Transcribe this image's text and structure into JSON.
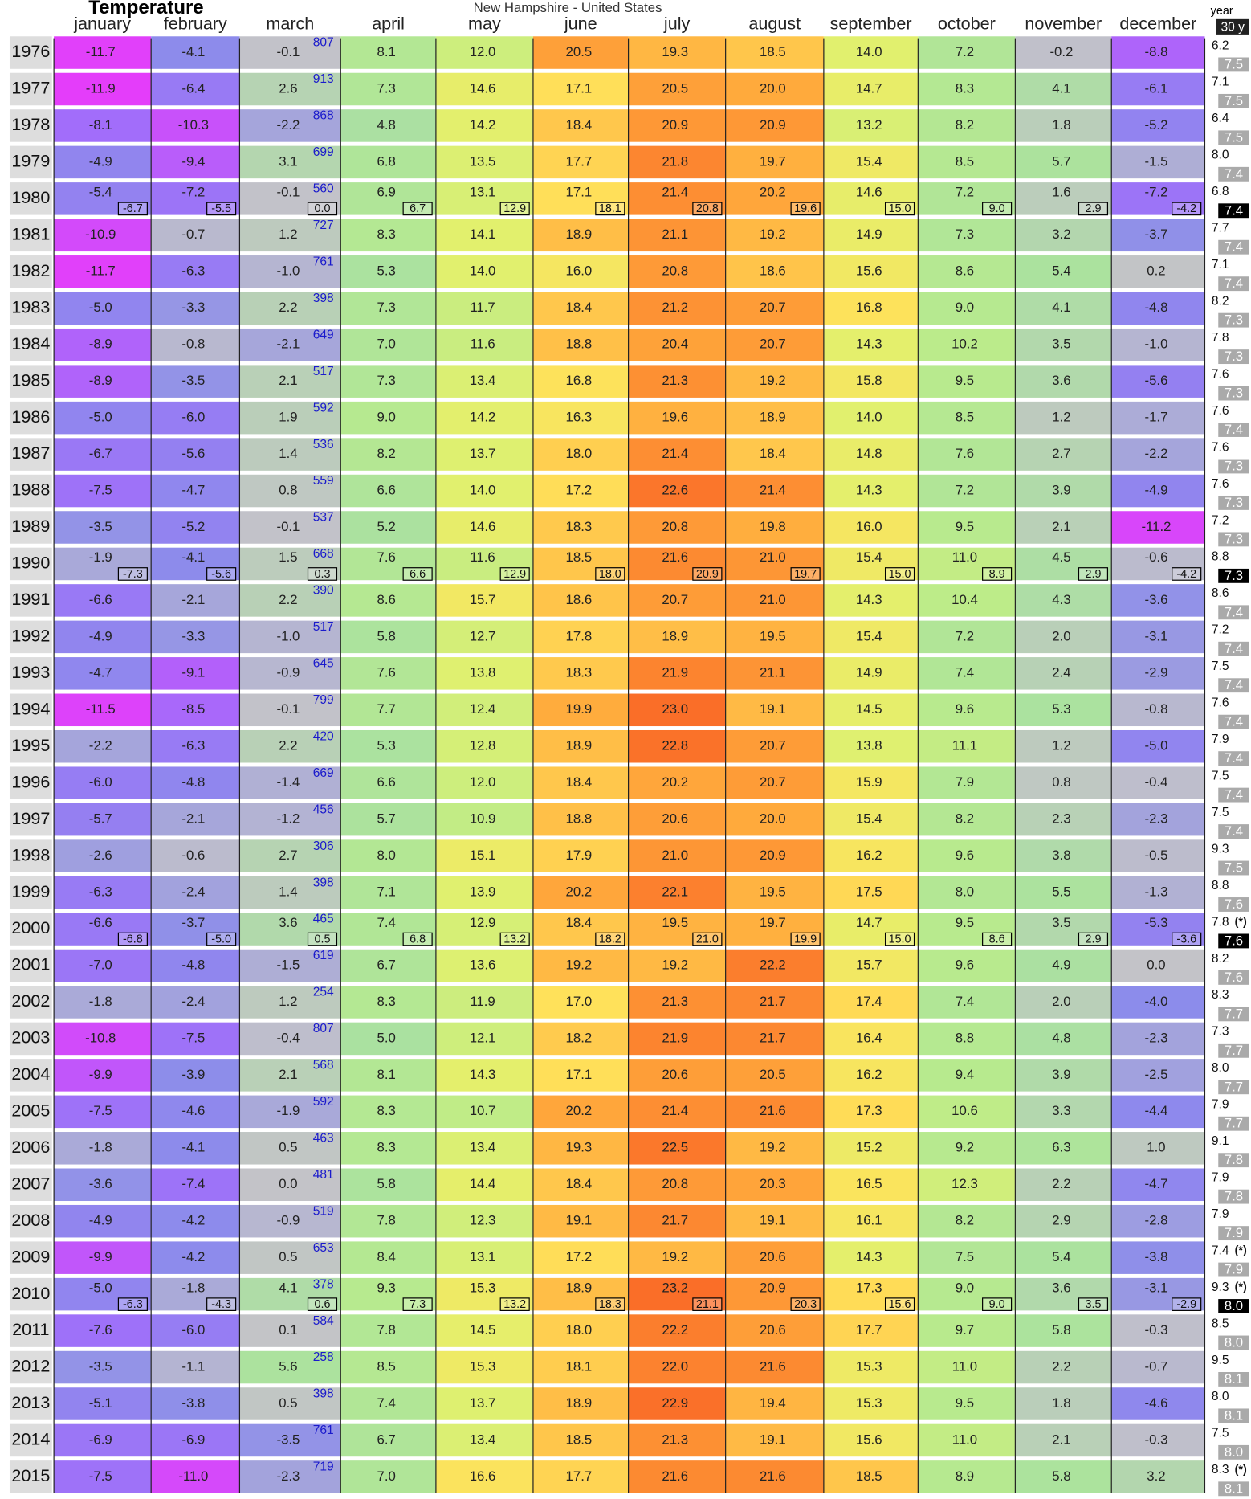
{
  "chart_data": {
    "type": "heatmap",
    "title": "Temperature",
    "subtitle": "New Hampshire - United States",
    "categories": [
      "january",
      "february",
      "march",
      "april",
      "may",
      "june",
      "july",
      "august",
      "september",
      "october",
      "november",
      "december"
    ],
    "year_header": "year",
    "avg_header": "30 y",
    "rows": [
      {
        "year": "1976",
        "values": [
          -11.7,
          -4.1,
          -0.1,
          8.1,
          12.0,
          20.5,
          19.3,
          18.5,
          14.0,
          7.2,
          -0.2,
          -8.8
        ],
        "snow": 807,
        "annual": 6.2,
        "avg30": 7.5
      },
      {
        "year": "1977",
        "values": [
          -11.9,
          -6.4,
          2.6,
          7.3,
          14.6,
          17.1,
          20.5,
          20.0,
          14.7,
          8.3,
          4.1,
          -6.1
        ],
        "snow": 913,
        "annual": 7.1,
        "avg30": 7.5
      },
      {
        "year": "1978",
        "values": [
          -8.1,
          -10.3,
          -2.2,
          4.8,
          14.2,
          18.4,
          20.9,
          20.9,
          13.2,
          8.2,
          1.8,
          -5.2
        ],
        "snow": 868,
        "annual": 6.4,
        "avg30": 7.5
      },
      {
        "year": "1979",
        "values": [
          -4.9,
          -9.4,
          3.1,
          6.8,
          13.5,
          17.7,
          21.8,
          19.7,
          15.4,
          8.5,
          5.7,
          -1.5
        ],
        "snow": 699,
        "annual": 8.0,
        "avg30": 7.4
      },
      {
        "year": "1980",
        "values": [
          -5.4,
          -7.2,
          -0.1,
          6.9,
          13.1,
          17.1,
          21.4,
          20.2,
          14.6,
          7.2,
          1.6,
          -7.2
        ],
        "snow": 560,
        "annual": 6.8,
        "avg30": 7.4,
        "normals": [
          -6.7,
          -5.5,
          0.0,
          6.7,
          12.9,
          18.1,
          20.8,
          19.6,
          15.0,
          9.0,
          2.9,
          -4.2
        ]
      },
      {
        "year": "1981",
        "values": [
          -10.9,
          -0.7,
          1.2,
          8.3,
          14.1,
          18.9,
          21.1,
          19.2,
          14.9,
          7.3,
          3.2,
          -3.7
        ],
        "snow": 727,
        "annual": 7.7,
        "avg30": 7.4
      },
      {
        "year": "1982",
        "values": [
          -11.7,
          -6.3,
          -1.0,
          5.3,
          14.0,
          16.0,
          20.8,
          18.6,
          15.6,
          8.6,
          5.4,
          0.2
        ],
        "snow": 761,
        "annual": 7.1,
        "avg30": 7.4
      },
      {
        "year": "1983",
        "values": [
          -5.0,
          -3.3,
          2.2,
          7.3,
          11.7,
          18.4,
          21.2,
          20.7,
          16.8,
          9.0,
          4.1,
          -4.8
        ],
        "snow": 398,
        "annual": 8.2,
        "avg30": 7.3
      },
      {
        "year": "1984",
        "values": [
          -8.9,
          -0.8,
          -2.1,
          7.0,
          11.6,
          18.8,
          20.4,
          20.7,
          14.3,
          10.2,
          3.5,
          -1.0
        ],
        "snow": 649,
        "annual": 7.8,
        "avg30": 7.3
      },
      {
        "year": "1985",
        "values": [
          -8.9,
          -3.5,
          2.1,
          7.3,
          13.4,
          16.8,
          21.3,
          19.2,
          15.8,
          9.5,
          3.6,
          -5.6
        ],
        "snow": 517,
        "annual": 7.6,
        "avg30": 7.3
      },
      {
        "year": "1986",
        "values": [
          -5.0,
          -6.0,
          1.9,
          9.0,
          14.2,
          16.3,
          19.6,
          18.9,
          14.0,
          8.5,
          1.2,
          -1.7
        ],
        "snow": 592,
        "annual": 7.6,
        "avg30": 7.4
      },
      {
        "year": "1987",
        "values": [
          -6.7,
          -5.6,
          1.4,
          8.2,
          13.7,
          18.0,
          21.4,
          18.4,
          14.8,
          7.6,
          2.7,
          -2.2
        ],
        "snow": 536,
        "annual": 7.6,
        "avg30": 7.3
      },
      {
        "year": "1988",
        "values": [
          -7.5,
          -4.7,
          0.8,
          6.6,
          14.0,
          17.2,
          22.6,
          21.4,
          14.3,
          7.2,
          3.9,
          -4.9
        ],
        "snow": 559,
        "annual": 7.6,
        "avg30": 7.3
      },
      {
        "year": "1989",
        "values": [
          -3.5,
          -5.2,
          -0.1,
          5.2,
          14.6,
          18.3,
          20.8,
          19.8,
          16.0,
          9.5,
          2.1,
          -11.2
        ],
        "snow": 537,
        "annual": 7.2,
        "avg30": 7.3
      },
      {
        "year": "1990",
        "values": [
          -1.9,
          -4.1,
          1.5,
          7.6,
          11.6,
          18.5,
          21.6,
          21.0,
          15.4,
          11.0,
          4.5,
          -0.6
        ],
        "snow": 668,
        "annual": 8.8,
        "avg30": 7.3,
        "normals": [
          -7.3,
          -5.6,
          0.3,
          6.6,
          12.9,
          18.0,
          20.9,
          19.7,
          15.0,
          8.9,
          2.9,
          -4.2
        ]
      },
      {
        "year": "1991",
        "values": [
          -6.6,
          -2.1,
          2.2,
          8.6,
          15.7,
          18.6,
          20.7,
          21.0,
          14.3,
          10.4,
          4.3,
          -3.6
        ],
        "snow": 390,
        "annual": 8.6,
        "avg30": 7.4
      },
      {
        "year": "1992",
        "values": [
          -4.9,
          -3.3,
          -1.0,
          5.8,
          12.7,
          17.8,
          18.9,
          19.5,
          15.4,
          7.2,
          2.0,
          -3.1
        ],
        "snow": 517,
        "annual": 7.2,
        "avg30": 7.4
      },
      {
        "year": "1993",
        "values": [
          -4.7,
          -9.1,
          -0.9,
          7.6,
          13.8,
          18.3,
          21.9,
          21.1,
          14.9,
          7.4,
          2.4,
          -2.9
        ],
        "snow": 645,
        "annual": 7.5,
        "avg30": 7.4
      },
      {
        "year": "1994",
        "values": [
          -11.5,
          -8.5,
          -0.1,
          7.7,
          12.4,
          19.9,
          23.0,
          19.1,
          14.5,
          9.6,
          5.3,
          -0.8
        ],
        "snow": 799,
        "annual": 7.6,
        "avg30": 7.4
      },
      {
        "year": "1995",
        "values": [
          -2.2,
          -6.3,
          2.2,
          5.3,
          12.8,
          18.9,
          22.8,
          20.7,
          13.8,
          11.1,
          1.2,
          -5.0
        ],
        "snow": 420,
        "annual": 7.9,
        "avg30": 7.4
      },
      {
        "year": "1996",
        "values": [
          -6.0,
          -4.8,
          -1.4,
          6.6,
          12.0,
          18.4,
          20.2,
          20.7,
          15.9,
          7.9,
          0.8,
          -0.4
        ],
        "snow": 669,
        "annual": 7.5,
        "avg30": 7.4
      },
      {
        "year": "1997",
        "values": [
          -5.7,
          -2.1,
          -1.2,
          5.7,
          10.9,
          18.8,
          20.6,
          20.0,
          15.4,
          8.2,
          2.3,
          -2.3
        ],
        "snow": 456,
        "annual": 7.5,
        "avg30": 7.4
      },
      {
        "year": "1998",
        "values": [
          -2.6,
          -0.6,
          2.7,
          8.0,
          15.1,
          17.9,
          21.0,
          20.9,
          16.2,
          9.6,
          3.8,
          -0.5
        ],
        "snow": 306,
        "annual": 9.3,
        "avg30": 7.5
      },
      {
        "year": "1999",
        "values": [
          -6.3,
          -2.4,
          1.4,
          7.1,
          13.9,
          20.2,
          22.1,
          19.5,
          17.5,
          8.0,
          5.5,
          -1.3
        ],
        "snow": 398,
        "annual": 8.8,
        "avg30": 7.6
      },
      {
        "year": "2000",
        "values": [
          -6.6,
          -3.7,
          3.6,
          7.4,
          12.9,
          18.4,
          19.5,
          19.7,
          14.7,
          9.5,
          3.5,
          -5.3
        ],
        "snow": 465,
        "annual": 7.8,
        "note": "(*)",
        "avg30": 7.6,
        "normals": [
          -6.8,
          -5.0,
          0.5,
          6.8,
          13.2,
          18.2,
          21.0,
          19.9,
          15.0,
          8.6,
          2.9,
          -3.6
        ]
      },
      {
        "year": "2001",
        "values": [
          -7.0,
          -4.8,
          -1.5,
          6.7,
          13.6,
          19.2,
          19.2,
          22.2,
          15.7,
          9.6,
          4.9,
          0.0
        ],
        "snow": 619,
        "annual": 8.2,
        "avg30": 7.6
      },
      {
        "year": "2002",
        "values": [
          -1.8,
          -2.4,
          1.2,
          8.3,
          11.9,
          17.0,
          21.3,
          21.7,
          17.4,
          7.4,
          2.0,
          -4.0
        ],
        "snow": 254,
        "annual": 8.3,
        "avg30": 7.7
      },
      {
        "year": "2003",
        "values": [
          -10.8,
          -7.5,
          -0.4,
          5.0,
          12.1,
          18.2,
          21.9,
          21.7,
          16.4,
          8.8,
          4.8,
          -2.3
        ],
        "snow": 807,
        "annual": 7.3,
        "avg30": 7.7
      },
      {
        "year": "2004",
        "values": [
          -9.9,
          -3.9,
          2.1,
          8.1,
          14.3,
          17.1,
          20.6,
          20.5,
          16.2,
          9.4,
          3.9,
          -2.5
        ],
        "snow": 568,
        "annual": 8.0,
        "avg30": 7.7
      },
      {
        "year": "2005",
        "values": [
          -7.5,
          -4.6,
          -1.9,
          8.3,
          10.7,
          20.2,
          21.4,
          21.6,
          17.3,
          10.6,
          3.3,
          -4.4
        ],
        "snow": 592,
        "annual": 7.9,
        "avg30": 7.7
      },
      {
        "year": "2006",
        "values": [
          -1.8,
          -4.1,
          0.5,
          8.3,
          13.4,
          19.3,
          22.5,
          19.2,
          15.2,
          9.2,
          6.3,
          1.0
        ],
        "snow": 463,
        "annual": 9.1,
        "avg30": 7.8
      },
      {
        "year": "2007",
        "values": [
          -3.6,
          -7.4,
          0.0,
          5.8,
          14.4,
          18.4,
          20.8,
          20.3,
          16.5,
          12.3,
          2.2,
          -4.7
        ],
        "snow": 481,
        "annual": 7.9,
        "avg30": 7.8
      },
      {
        "year": "2008",
        "values": [
          -4.9,
          -4.2,
          -0.9,
          7.8,
          12.3,
          19.1,
          21.7,
          19.1,
          16.1,
          8.2,
          2.9,
          -2.8
        ],
        "snow": 519,
        "annual": 7.9,
        "avg30": 7.9
      },
      {
        "year": "2009",
        "values": [
          -9.9,
          -4.2,
          0.5,
          8.4,
          13.1,
          17.2,
          19.2,
          20.6,
          14.3,
          7.5,
          5.4,
          -3.8
        ],
        "snow": 653,
        "annual": 7.4,
        "note": "(*)",
        "avg30": 7.9
      },
      {
        "year": "2010",
        "values": [
          -5.0,
          -1.8,
          4.1,
          9.3,
          15.3,
          18.9,
          23.2,
          20.9,
          17.3,
          9.0,
          3.6,
          -3.1
        ],
        "snow": 378,
        "annual": 9.3,
        "note": "(*)",
        "avg30": 8.0,
        "normals": [
          -6.3,
          -4.3,
          0.6,
          7.3,
          13.2,
          18.3,
          21.1,
          20.3,
          15.6,
          9.0,
          3.5,
          -2.9
        ]
      },
      {
        "year": "2011",
        "values": [
          -7.6,
          -6.0,
          0.1,
          7.8,
          14.5,
          18.0,
          22.2,
          20.6,
          17.7,
          9.7,
          5.8,
          -0.3
        ],
        "snow": 584,
        "annual": 8.5,
        "avg30": 8.0
      },
      {
        "year": "2012",
        "values": [
          -3.5,
          -1.1,
          5.6,
          8.5,
          15.3,
          18.1,
          22.0,
          21.6,
          15.3,
          11.0,
          2.2,
          -0.7
        ],
        "snow": 258,
        "annual": 9.5,
        "avg30": 8.1
      },
      {
        "year": "2013",
        "values": [
          -5.1,
          -3.8,
          0.5,
          7.4,
          13.7,
          18.9,
          22.9,
          19.4,
          15.3,
          9.5,
          1.8,
          -4.6
        ],
        "snow": 398,
        "annual": 8.0,
        "avg30": 8.1
      },
      {
        "year": "2014",
        "values": [
          -6.9,
          -6.9,
          -3.5,
          6.7,
          13.4,
          18.5,
          21.3,
          19.1,
          15.6,
          11.0,
          2.1,
          -0.3
        ],
        "snow": 761,
        "annual": 7.5,
        "avg30": 8.0
      },
      {
        "year": "2015",
        "values": [
          -7.5,
          -11.0,
          -2.3,
          7.0,
          16.6,
          17.7,
          21.6,
          21.6,
          18.5,
          8.9,
          5.8,
          3.2
        ],
        "snow": 719,
        "annual": 8.3,
        "note": "(*)",
        "avg30": 8.1
      }
    ]
  }
}
